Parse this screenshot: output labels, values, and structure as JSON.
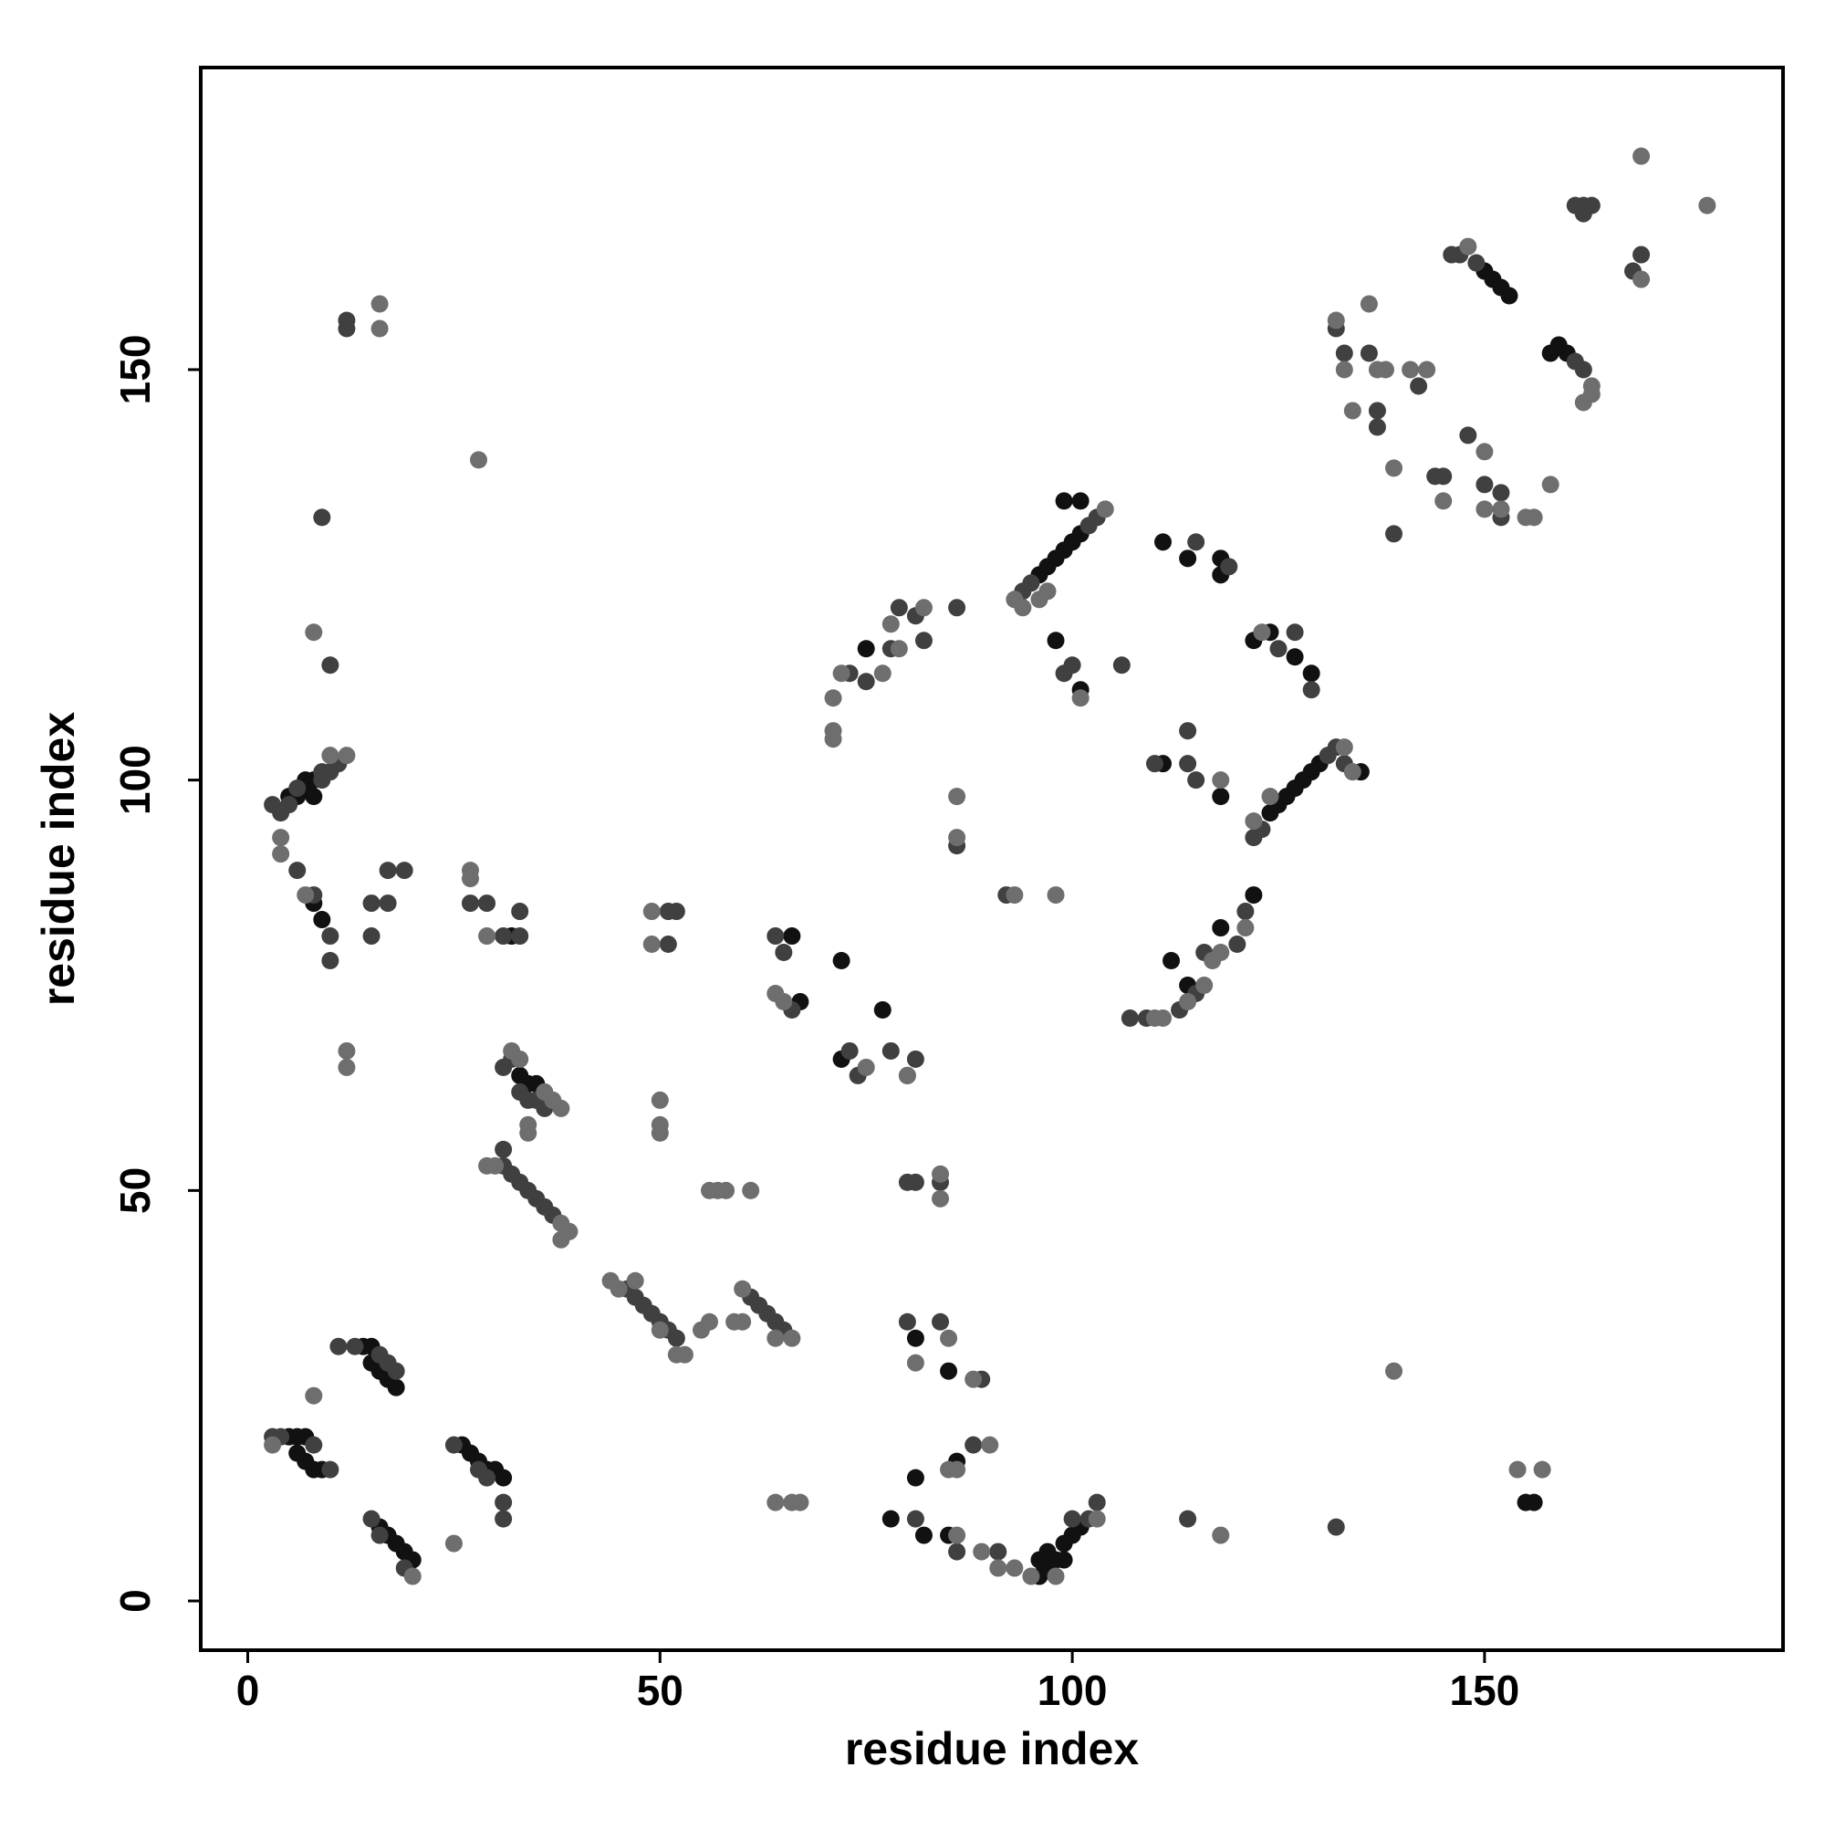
{
  "chart_data": {
    "type": "scatter",
    "xlabel": "residue index",
    "ylabel": "residue index",
    "xlim": [
      -5.7,
      186.2
    ],
    "ylim": [
      -6,
      186.8
    ],
    "xticks": [
      0,
      50,
      100,
      150
    ],
    "yticks": [
      0,
      50,
      100,
      150
    ],
    "series": [
      {
        "color": "#111111",
        "x": [
          5,
          6,
          7,
          6,
          7,
          8,
          9,
          14,
          15,
          15,
          16,
          17,
          18,
          16,
          17,
          18,
          19,
          20,
          26,
          27,
          28,
          29,
          30,
          31,
          5,
          6,
          7,
          7,
          8,
          8,
          8,
          9,
          32,
          33,
          34,
          35,
          72,
          75,
          72,
          77,
          78,
          82,
          85,
          96,
          97,
          96,
          97,
          98,
          99,
          99,
          100,
          101,
          96,
          97,
          98,
          99,
          100,
          101,
          99,
          101,
          98,
          101,
          111,
          114,
          118,
          118,
          112,
          114,
          118,
          122,
          111,
          118,
          124,
          125,
          126,
          127,
          128,
          129,
          130,
          135,
          122,
          124,
          127,
          129,
          150,
          151,
          152,
          153,
          158,
          159,
          160,
          155,
          156,
          66,
          67,
          81,
          85,
          81,
          86
        ],
        "y": [
          20,
          20,
          20,
          18,
          17,
          16,
          16,
          31,
          31,
          29,
          28,
          27,
          26,
          9,
          8,
          7,
          6,
          5,
          19,
          18,
          17,
          16,
          16,
          15,
          98,
          98,
          99,
          100,
          100,
          98,
          85,
          83,
          81,
          64,
          63,
          63,
          78,
          116,
          66,
          72,
          10,
          8,
          8,
          3,
          4,
          5,
          6,
          5,
          5,
          7,
          8,
          9,
          125,
          126,
          127,
          128,
          129,
          130,
          134,
          134,
          117,
          111,
          129,
          127,
          127,
          125,
          78,
          75,
          82,
          86,
          102,
          98,
          96,
          97,
          98,
          99,
          100,
          101,
          102,
          101,
          117,
          118,
          115,
          113,
          162,
          161,
          160,
          159,
          152,
          153,
          152,
          12,
          12,
          81,
          73,
          32,
          28,
          15,
          17
        ]
      },
      {
        "color": "#404040",
        "x": [
          3,
          4,
          8,
          10,
          11,
          13,
          16,
          17,
          18,
          15,
          16,
          19,
          25,
          28,
          29,
          31,
          31,
          3,
          4,
          5,
          6,
          9,
          9,
          10,
          11,
          6,
          8,
          10,
          10,
          15,
          15,
          17,
          17,
          19,
          27,
          29,
          31,
          33,
          33,
          10,
          9,
          12,
          12,
          31,
          32,
          33,
          34,
          35,
          36,
          31,
          31,
          32,
          33,
          34,
          35,
          36,
          37,
          46,
          47,
          48,
          49,
          50,
          51,
          52,
          61,
          62,
          63,
          64,
          65,
          51,
          52,
          51,
          64,
          65,
          66,
          73,
          74,
          75,
          73,
          78,
          79,
          81,
          82,
          86,
          78,
          80,
          81,
          80,
          81,
          84,
          80,
          84,
          89,
          88,
          81,
          86,
          91,
          100,
          102,
          103,
          114,
          132,
          86,
          92,
          94,
          95,
          102,
          103,
          100,
          99,
          106,
          115,
          119,
          107,
          109,
          113,
          115,
          116,
          121,
          120,
          110,
          114,
          114,
          115,
          122,
          123,
          131,
          132,
          133,
          125,
          127,
          129,
          132,
          133,
          136,
          137,
          137,
          139,
          142,
          144,
          145,
          148,
          150,
          152,
          152,
          146,
          147,
          149,
          161,
          162,
          162,
          168,
          169,
          161,
          162,
          163
        ],
        "y": [
          20,
          20,
          19,
          16,
          31,
          31,
          30,
          29,
          28,
          10,
          8,
          4,
          19,
          16,
          15,
          12,
          10,
          97,
          96,
          97,
          99,
          100,
          101,
          101,
          102,
          89,
          86,
          81,
          78,
          85,
          81,
          85,
          89,
          89,
          85,
          85,
          81,
          81,
          84,
          114,
          132,
          156,
          155,
          65,
          66,
          62,
          61,
          61,
          60,
          55,
          53,
          52,
          51,
          50,
          49,
          48,
          47,
          38,
          37,
          36,
          35,
          34,
          33,
          32,
          37,
          36,
          35,
          34,
          33,
          80,
          84,
          84,
          81,
          79,
          72,
          67,
          64,
          112,
          113,
          116,
          121,
          120,
          117,
          121,
          67,
          64,
          66,
          51,
          51,
          51,
          34,
          34,
          27,
          19,
          10,
          6,
          6,
          10,
          10,
          12,
          10,
          9,
          92,
          86,
          123,
          124,
          131,
          132,
          114,
          113,
          114,
          129,
          126,
          71,
          71,
          72,
          74,
          79,
          84,
          80,
          102,
          106,
          102,
          100,
          93,
          94,
          103,
          104,
          102,
          116,
          118,
          111,
          155,
          152,
          152,
          143,
          145,
          130,
          148,
          137,
          137,
          142,
          136,
          135,
          132,
          164,
          164,
          163,
          151,
          150,
          169,
          162,
          164,
          170,
          170,
          170
        ]
      },
      {
        "color": "#6e6e6e",
        "x": [
          3,
          4,
          4,
          7,
          8,
          8,
          12,
          10,
          12,
          12,
          16,
          16,
          28,
          20,
          25,
          27,
          27,
          29,
          29,
          30,
          32,
          33,
          34,
          34,
          36,
          37,
          38,
          38,
          39,
          38,
          44,
          45,
          47,
          50,
          52,
          53,
          55,
          56,
          59,
          60,
          60,
          64,
          66,
          56,
          57,
          58,
          61,
          50,
          50,
          50,
          49,
          49,
          64,
          65,
          64,
          66,
          67,
          71,
          71,
          71,
          72,
          77,
          79,
          78,
          82,
          75,
          80,
          84,
          84,
          81,
          85,
          88,
          86,
          90,
          85,
          86,
          89,
          91,
          93,
          98,
          95,
          103,
          118,
          139,
          154,
          157,
          86,
          86,
          93,
          98,
          93,
          94,
          96,
          97,
          104,
          101,
          110,
          111,
          117,
          114,
          118,
          121,
          116,
          118,
          122,
          124,
          133,
          134,
          123,
          132,
          133,
          134,
          136,
          137,
          138,
          141,
          143,
          139,
          145,
          150,
          150,
          152,
          155,
          156,
          158,
          148,
          162,
          163,
          163,
          169,
          169,
          177
        ],
        "y": [
          19,
          93,
          91,
          86,
          25,
          118,
          103,
          103,
          67,
          65,
          158,
          155,
          139,
          3,
          7,
          89,
          88,
          81,
          53,
          53,
          67,
          66,
          58,
          57,
          62,
          61,
          60,
          46,
          45,
          44,
          39,
          38,
          39,
          33,
          30,
          30,
          33,
          34,
          34,
          34,
          38,
          32,
          32,
          50,
          50,
          50,
          50,
          57,
          58,
          61,
          80,
          84,
          74,
          73,
          12,
          12,
          12,
          110,
          106,
          105,
          113,
          113,
          116,
          119,
          121,
          65,
          64,
          52,
          49,
          29,
          32,
          27,
          16,
          19,
          16,
          8,
          6,
          4,
          4,
          3,
          3,
          10,
          8,
          28,
          16,
          16,
          98,
          93,
          86,
          86,
          122,
          121,
          122,
          123,
          133,
          110,
          71,
          71,
          78,
          73,
          79,
          82,
          75,
          100,
          95,
          98,
          104,
          101,
          118,
          156,
          150,
          145,
          158,
          150,
          150,
          150,
          150,
          138,
          134,
          140,
          133,
          133,
          132,
          132,
          136,
          165,
          146,
          148,
          147,
          161,
          176,
          170
        ]
      }
    ]
  }
}
